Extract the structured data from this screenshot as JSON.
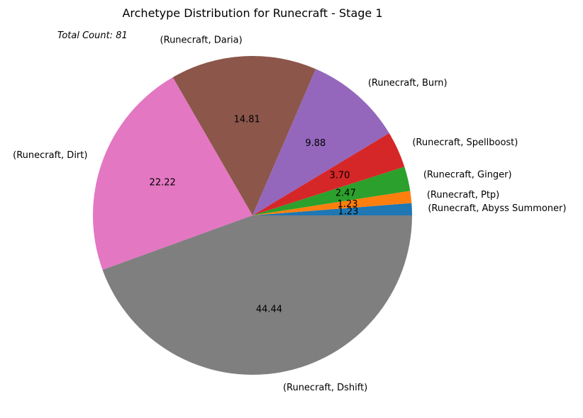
{
  "chart_data": {
    "type": "pie",
    "title": "Archetype Distribution for Runecraft - Stage 1",
    "annotation": "Total Count: 81",
    "slices": [
      {
        "label": "(Runecraft, Abyss Summoner)",
        "value": 1.23,
        "pct_label": "1.23",
        "color": "#1f77b4"
      },
      {
        "label": "(Runecraft, Ptp)",
        "value": 1.23,
        "pct_label": "1.23",
        "color": "#ff7f0e"
      },
      {
        "label": "(Runecraft, Ginger)",
        "value": 2.47,
        "pct_label": "2.47",
        "color": "#2ca02c"
      },
      {
        "label": "(Runecraft, Spellboost)",
        "value": 3.7,
        "pct_label": "3.70",
        "color": "#d62728"
      },
      {
        "label": "(Runecraft, Burn)",
        "value": 9.88,
        "pct_label": "9.88",
        "color": "#9467bd"
      },
      {
        "label": "(Runecraft, Daria)",
        "value": 14.81,
        "pct_label": "14.81",
        "color": "#8c564b"
      },
      {
        "label": "(Runecraft, Dirt)",
        "value": 22.22,
        "pct_label": "22.22",
        "color": "#e377c2"
      },
      {
        "label": "(Runecraft, Dshift)",
        "value": 44.44,
        "pct_label": "44.44",
        "color": "#7f7f7f"
      }
    ]
  }
}
